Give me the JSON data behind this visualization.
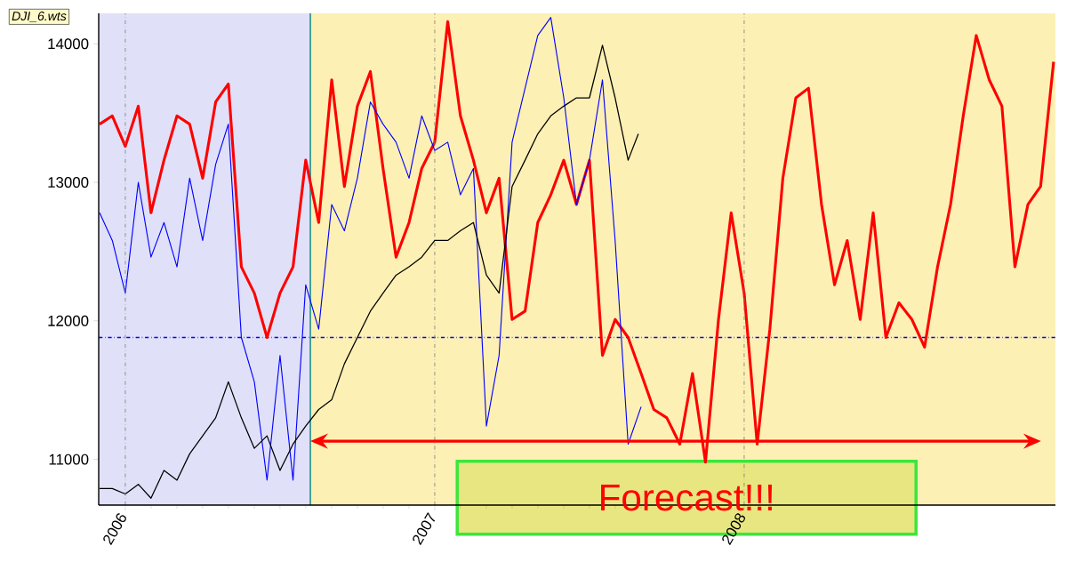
{
  "chart_data": {
    "type": "line",
    "annotations": [
      "DJI_6.wts"
    ],
    "xlim": [
      2005.914,
      2009.006
    ],
    "ylim": [
      10670,
      14220
    ],
    "xticks": [
      2006,
      2007,
      2008
    ],
    "yticks": [
      11000,
      12000,
      13000,
      14000
    ],
    "grid": "x",
    "bands": [
      {
        "axis": "x",
        "from": 2005.914,
        "to": 2006.598,
        "color": "#e0e0f8"
      },
      {
        "axis": "x",
        "from": 2006.598,
        "to": 2009.006,
        "color": "#fdf0b4",
        "label": "Forecast!!!"
      }
    ],
    "ref_lines": [
      {
        "axis": "y",
        "value": 11880,
        "color": "#0000ff",
        "line_style": "dashed"
      },
      {
        "axis": "x",
        "value": 2006.598,
        "color": "#008080",
        "line_style": "solid"
      }
    ],
    "series": [
      {
        "color": "#ff0000",
        "x": [
          2005.917,
          2005.958,
          2006.0,
          2006.042,
          2006.083,
          2006.125,
          2006.167,
          2006.208,
          2006.25,
          2006.292,
          2006.333,
          2006.375,
          2006.417,
          2006.458,
          2006.5,
          2006.542,
          2006.583,
          2006.625,
          2006.667,
          2006.708,
          2006.75,
          2006.792,
          2006.833,
          2006.875,
          2006.917,
          2006.958,
          2007.0,
          2007.042,
          2007.083,
          2007.125,
          2007.167,
          2007.208,
          2007.25,
          2007.292,
          2007.333,
          2007.375,
          2007.417,
          2007.458,
          2007.5,
          2007.542,
          2007.583,
          2007.625,
          2007.667,
          2007.708,
          2007.75,
          2007.792,
          2007.833,
          2007.875,
          2007.917,
          2007.958,
          2008.0,
          2008.042,
          2008.083,
          2008.125,
          2008.167,
          2008.208,
          2008.25,
          2008.292,
          2008.333,
          2008.375,
          2008.417,
          2008.458,
          2008.5,
          2008.542,
          2008.583,
          2008.625,
          2008.667,
          2008.708,
          2008.75,
          2008.792,
          2008.833,
          2008.875,
          2008.917,
          2008.958,
          2009.0
        ],
        "values": [
          13420,
          13480,
          13260,
          13550,
          12780,
          13160,
          13480,
          13420,
          13030,
          13580,
          13710,
          12390,
          12200,
          11880,
          12200,
          12390,
          13160,
          12710,
          13740,
          12970,
          13550,
          13800,
          13100,
          12460,
          12710,
          13100,
          13290,
          14160,
          13480,
          13160,
          12780,
          13030,
          12010,
          12070,
          12710,
          12910,
          13160,
          12840,
          13160,
          11750,
          12010,
          11880,
          11620,
          11360,
          11300,
          11110,
          11620,
          10980,
          12010,
          12780,
          12200,
          11110,
          11940,
          13030,
          13610,
          13680,
          12840,
          12260,
          12580,
          12010,
          12780,
          11880,
          12130,
          12010,
          11810,
          12390,
          12840,
          13480,
          14060,
          13740,
          13550,
          12390,
          12840,
          12970,
          13870
        ]
      },
      {
        "color": "#0000ff",
        "x": [
          2005.917,
          2005.958,
          2006.0,
          2006.042,
          2006.083,
          2006.125,
          2006.167,
          2006.208,
          2006.25,
          2006.292,
          2006.333,
          2006.375,
          2006.417,
          2006.458,
          2006.5,
          2006.542,
          2006.583,
          2006.625,
          2006.667,
          2006.708,
          2006.75,
          2006.792,
          2006.833,
          2006.875,
          2006.917,
          2006.958,
          2007.0,
          2007.042,
          2007.083,
          2007.125,
          2007.167,
          2007.208,
          2007.25,
          2007.292,
          2007.333,
          2007.375,
          2007.417,
          2007.458,
          2007.5,
          2007.542,
          2007.583,
          2007.625,
          2007.667
        ],
        "values": [
          12780,
          12580,
          12200,
          13000,
          12460,
          12710,
          12390,
          13030,
          12580,
          13130,
          13420,
          11880,
          11560,
          10850,
          11750,
          10850,
          12260,
          11940,
          12840,
          12650,
          13030,
          13580,
          13420,
          13290,
          13030,
          13480,
          13230,
          13290,
          12910,
          13100,
          11240,
          11750,
          13290,
          13680,
          14060,
          14190,
          13610,
          12840,
          13160,
          13740,
          12580,
          11110,
          11380
        ]
      },
      {
        "color": "#000000",
        "x": [
          2005.917,
          2005.958,
          2006.0,
          2006.042,
          2006.083,
          2006.125,
          2006.167,
          2006.208,
          2006.25,
          2006.292,
          2006.333,
          2006.375,
          2006.417,
          2006.458,
          2006.5,
          2006.542,
          2006.583,
          2006.625,
          2006.667,
          2006.708,
          2006.75,
          2006.792,
          2006.833,
          2006.875,
          2006.917,
          2006.958,
          2007.0,
          2007.042,
          2007.083,
          2007.125,
          2007.167,
          2007.208,
          2007.25,
          2007.292,
          2007.333,
          2007.375,
          2007.417,
          2007.458,
          2007.5,
          2007.542,
          2007.583,
          2007.625,
          2007.658
        ],
        "values": [
          10790,
          10790,
          10750,
          10820,
          10720,
          10920,
          10850,
          11040,
          11170,
          11300,
          11560,
          11300,
          11080,
          11170,
          10920,
          11110,
          11240,
          11360,
          11430,
          11690,
          11880,
          12070,
          12200,
          12330,
          12390,
          12460,
          12580,
          12580,
          12650,
          12710,
          12330,
          12200,
          12970,
          13160,
          13350,
          13480,
          13550,
          13610,
          13610,
          13990,
          13610,
          13160,
          13350
        ]
      }
    ]
  }
}
